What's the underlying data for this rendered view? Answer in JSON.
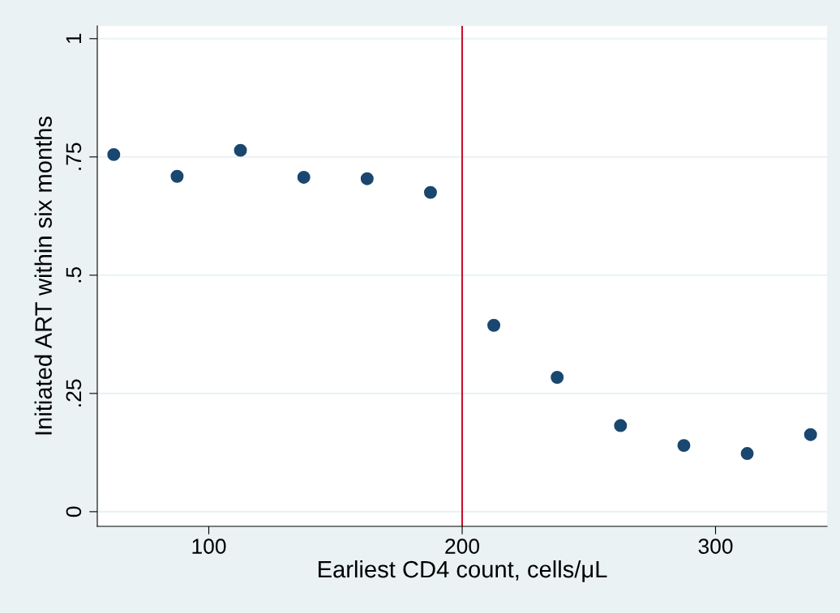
{
  "chart_data": {
    "type": "scatter",
    "xlabel": "Earliest CD4 count, cells/μL",
    "ylabel": "Initiated ART within six months",
    "x": [
      62.5,
      87.5,
      112.5,
      137.5,
      162.5,
      187.5,
      212.5,
      237.5,
      262.5,
      287.5,
      312.5,
      337.5
    ],
    "series": [
      {
        "color": "#1a476f",
        "values": [
          0.755,
          0.709,
          0.764,
          0.707,
          0.704,
          0.675,
          0.394,
          0.284,
          0.182,
          0.14,
          0.123,
          0.163
        ]
      }
    ],
    "xlim": [
      56,
      344
    ],
    "ylim": [
      -0.031,
      1.027
    ],
    "xticks": [
      100,
      200,
      300
    ],
    "yticks": [
      0,
      {
        "value": 0.25,
        "label": ".25"
      },
      {
        "value": 0.5,
        "label": ".5"
      },
      {
        "value": 0.75,
        "label": ".75"
      },
      1
    ],
    "ref_lines": [
      {
        "axis": "x",
        "value": 200,
        "color": "#c8102e"
      }
    ],
    "grid": "y",
    "marker": "circle"
  }
}
